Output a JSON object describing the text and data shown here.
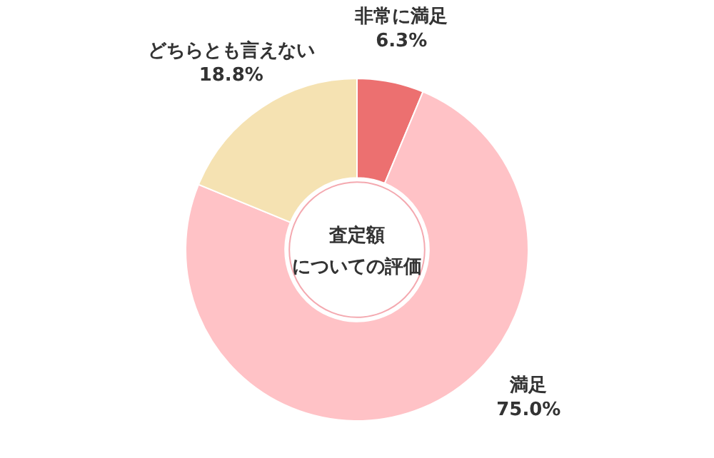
{
  "chart_data": {
    "type": "donut",
    "title": "査定額",
    "subtitle": "についての評価",
    "categories": [
      "非常に満足",
      "満足",
      "どちらとも言えない"
    ],
    "values": [
      6.3,
      75.0,
      18.8
    ],
    "colors": [
      "#ec7070",
      "#ffc2c6",
      "#f5e2b2"
    ],
    "value_labels": [
      "6.3%",
      "75.0%",
      "18.8%"
    ],
    "legend": false
  }
}
